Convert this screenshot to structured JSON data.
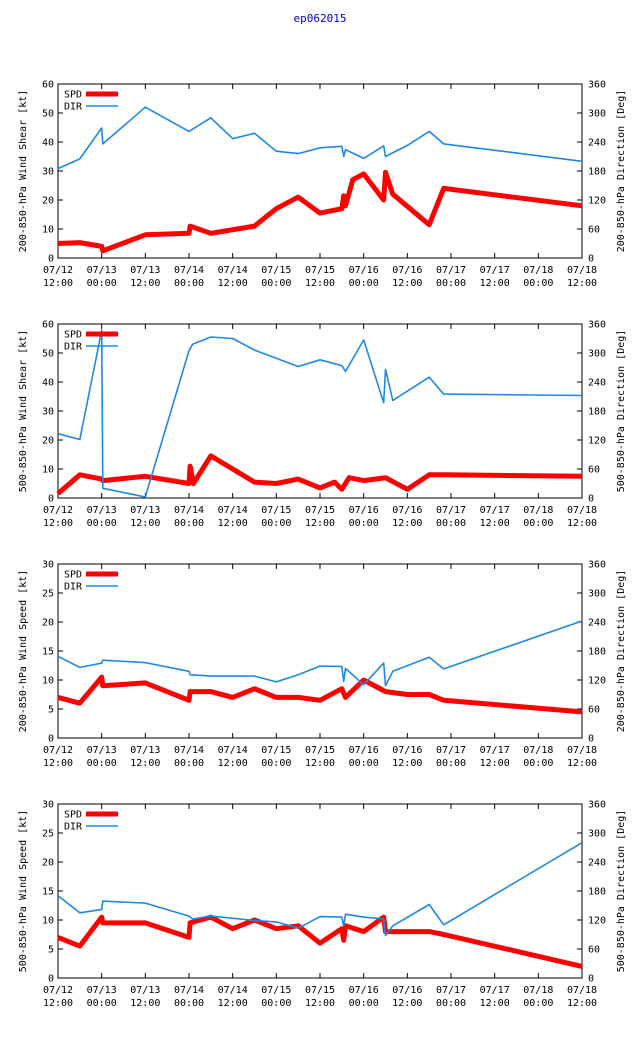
{
  "page_title": "ep062015",
  "x_tick_labels": [
    {
      "date": "07/12",
      "time": "12:00"
    },
    {
      "date": "07/13",
      "time": "00:00"
    },
    {
      "date": "07/13",
      "time": "12:00"
    },
    {
      "date": "07/14",
      "time": "00:00"
    },
    {
      "date": "07/14",
      "time": "12:00"
    },
    {
      "date": "07/15",
      "time": "00:00"
    },
    {
      "date": "07/15",
      "time": "12:00"
    },
    {
      "date": "07/16",
      "time": "00:00"
    },
    {
      "date": "07/16",
      "time": "12:00"
    },
    {
      "date": "07/17",
      "time": "00:00"
    },
    {
      "date": "07/17",
      "time": "12:00"
    },
    {
      "date": "07/18",
      "time": "00:00"
    },
    {
      "date": "07/18",
      "time": "12:00"
    }
  ],
  "colors": {
    "spd": "#ff0000",
    "dir": "#1e88e5",
    "title": "#0000cc"
  },
  "chart_data": [
    {
      "type": "line",
      "title": "",
      "ylabel": "200-850-hPa Wind Shear [kt]",
      "y2label": "200-850-hPa Direction [Deg]",
      "ylim": [
        0,
        60
      ],
      "yticks": [
        0,
        10,
        20,
        30,
        40,
        50,
        60
      ],
      "y2lim": [
        0,
        360
      ],
      "y2ticks": [
        0,
        60,
        120,
        180,
        240,
        300,
        360
      ],
      "xlim_hours": [
        0,
        144
      ],
      "legend": [
        "SPD",
        "DIR"
      ],
      "series": [
        {
          "name": "SPD",
          "axis": "left",
          "x": [
            0,
            6,
            12,
            12.3,
            24,
            36,
            36.3,
            42,
            54,
            60,
            66,
            72,
            78,
            78.5,
            79,
            81,
            84,
            89.5,
            90,
            92,
            102,
            106,
            144
          ],
          "values": [
            5,
            5.3,
            4,
            2.5,
            8,
            8.5,
            11,
            8.5,
            11,
            17,
            21,
            15.5,
            17,
            21.5,
            18,
            27,
            29,
            20,
            29.5,
            22,
            11.5,
            24,
            18
          ]
        },
        {
          "name": "DIR",
          "axis": "right",
          "x": [
            0,
            6,
            12,
            12.3,
            24,
            36,
            42,
            48,
            54,
            60,
            66,
            72,
            78,
            78.5,
            79,
            84,
            89.5,
            90,
            96,
            102,
            106,
            144
          ],
          "values": [
            185,
            205,
            269,
            236,
            312,
            262,
            290,
            247,
            258,
            221,
            216,
            228,
            231,
            210,
            224,
            206,
            232,
            210,
            233,
            262,
            236,
            200
          ]
        }
      ]
    },
    {
      "type": "line",
      "title": "",
      "ylabel": "500-850-hPa Wind Shear [kt]",
      "y2label": "500-850-hPa Direction [Deg]",
      "ylim": [
        0,
        60
      ],
      "yticks": [
        0,
        10,
        20,
        30,
        40,
        50,
        60
      ],
      "y2lim": [
        0,
        360
      ],
      "y2ticks": [
        0,
        60,
        120,
        180,
        240,
        300,
        360
      ],
      "xlim_hours": [
        0,
        144
      ],
      "legend": [
        "SPD",
        "DIR"
      ],
      "series": [
        {
          "name": "SPD",
          "axis": "left",
          "x": [
            0,
            6,
            12,
            12.3,
            24,
            36,
            36.3,
            37.2,
            42,
            54,
            60,
            66,
            72,
            76,
            78,
            80,
            84,
            90,
            96,
            102,
            106,
            144
          ],
          "values": [
            1.5,
            8,
            6.5,
            6,
            7.5,
            5,
            11,
            5,
            14.5,
            5.5,
            5,
            6.5,
            3.5,
            5.5,
            3,
            7,
            6,
            7,
            3,
            8,
            8,
            7.5
          ]
        },
        {
          "name": "DIR",
          "axis": "right",
          "x": [
            0,
            6,
            12,
            12.3,
            24,
            36,
            37,
            42,
            48,
            54,
            66,
            72,
            78,
            79,
            84,
            89.5,
            90,
            92,
            102,
            106,
            144
          ],
          "values": [
            133,
            121,
            347,
            20,
            2,
            305,
            318,
            333,
            330,
            306,
            272,
            286,
            274,
            262,
            327,
            197,
            266,
            202,
            250,
            215,
            212
          ]
        }
      ]
    },
    {
      "type": "line",
      "title": "",
      "ylabel": "200-850-hPa Wind Speed [kt]",
      "y2label": "200-850-hPa Direction [Deg]",
      "ylim": [
        0,
        30
      ],
      "yticks": [
        0,
        5,
        10,
        15,
        20,
        25,
        30
      ],
      "y2lim": [
        0,
        360
      ],
      "y2ticks": [
        0,
        60,
        120,
        180,
        240,
        300,
        360
      ],
      "xlim_hours": [
        0,
        144
      ],
      "legend": [
        "SPD",
        "DIR"
      ],
      "series": [
        {
          "name": "SPD",
          "axis": "left",
          "x": [
            0,
            6,
            12,
            12.3,
            24,
            36,
            36.3,
            42,
            48,
            54,
            60,
            66,
            72,
            78,
            79,
            84,
            90,
            96,
            102,
            106,
            144
          ],
          "values": [
            7,
            6,
            10.5,
            9,
            9.5,
            6.5,
            8,
            8,
            7,
            8.5,
            7,
            7,
            6.5,
            8.5,
            7,
            10,
            8,
            7.5,
            7.5,
            6.5,
            4.5
          ]
        },
        {
          "name": "DIR",
          "axis": "right",
          "x": [
            0,
            6,
            12,
            12.3,
            24,
            36,
            36.3,
            42,
            54,
            60,
            66,
            72,
            78,
            78.5,
            79,
            84,
            89.5,
            90,
            92,
            102,
            106,
            144
          ],
          "values": [
            169,
            146,
            155,
            161,
            156,
            138,
            131,
            128,
            128,
            116,
            131,
            149,
            148,
            117,
            144,
            110,
            155,
            108,
            138,
            167,
            143,
            242
          ]
        }
      ]
    },
    {
      "type": "line",
      "title": "",
      "ylabel": "500-850-hPa Wind Speed [kt]",
      "y2label": "500-850-hPa Direction [Deg]",
      "ylim": [
        0,
        30
      ],
      "yticks": [
        0,
        5,
        10,
        15,
        20,
        25,
        30
      ],
      "y2lim": [
        0,
        360
      ],
      "y2ticks": [
        0,
        60,
        120,
        180,
        240,
        300,
        360
      ],
      "xlim_hours": [
        0,
        144
      ],
      "legend": [
        "SPD",
        "DIR"
      ],
      "series": [
        {
          "name": "SPD",
          "axis": "left",
          "x": [
            0,
            6,
            12,
            12.3,
            24,
            36,
            36.3,
            42,
            48,
            54,
            60,
            66,
            72,
            78,
            78.5,
            79,
            84,
            89.5,
            90,
            92,
            102,
            106,
            144
          ],
          "values": [
            7,
            5.5,
            10.5,
            9.5,
            9.5,
            7,
            9.5,
            10.5,
            8.5,
            10,
            8.5,
            9,
            6,
            8.5,
            6.5,
            9,
            8,
            10.5,
            8,
            8,
            8,
            7.5,
            2
          ]
        },
        {
          "name": "DIR",
          "axis": "right",
          "x": [
            0,
            6,
            12,
            12.3,
            24,
            36,
            37,
            42,
            54,
            60,
            66,
            72,
            78,
            78.5,
            79,
            84,
            89.5,
            90,
            92,
            102,
            106,
            144
          ],
          "values": [
            170,
            135,
            142,
            159,
            155,
            128,
            122,
            128,
            119,
            116,
            103,
            127,
            126,
            108,
            132,
            126,
            122,
            88,
            108,
            152,
            110,
            280
          ]
        }
      ]
    }
  ]
}
